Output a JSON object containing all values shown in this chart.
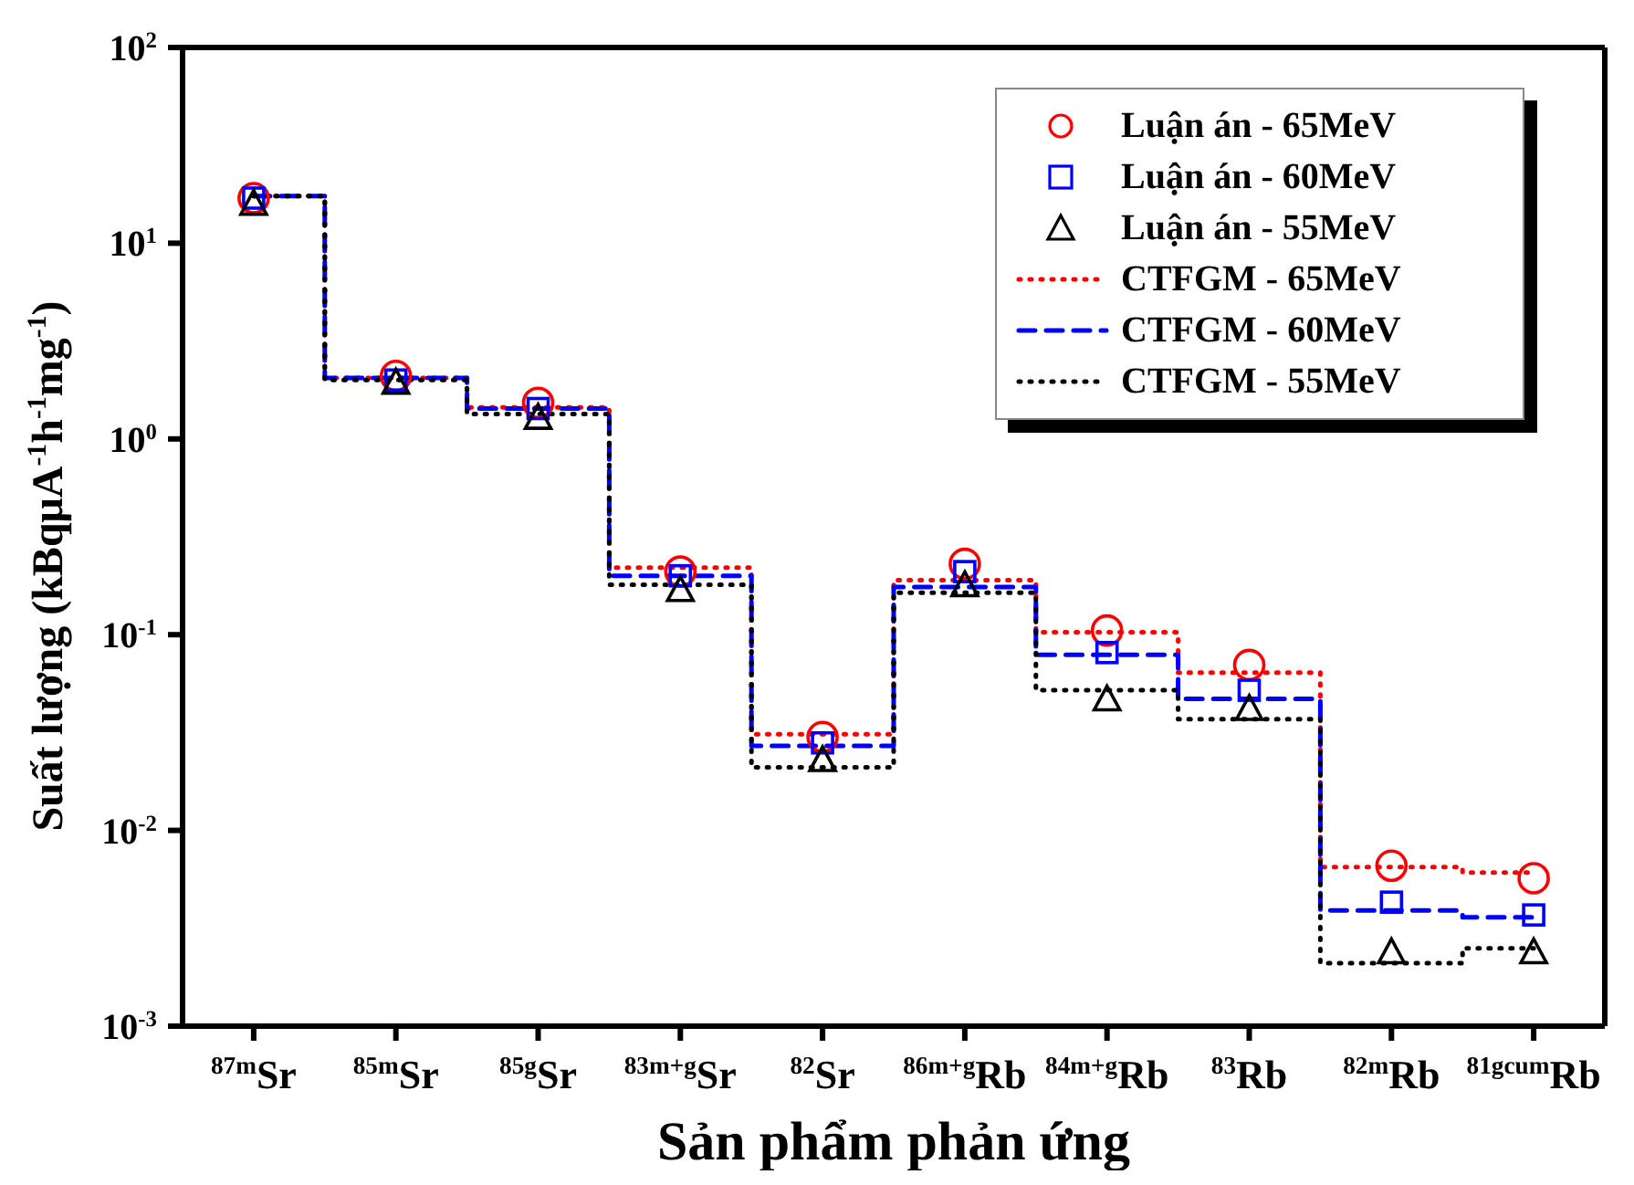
{
  "chart_data": {
    "type": "scatter",
    "xlabel": "Sản phẩm phản ứng",
    "ylabel": "Suất lượng (kBqμA$^{-1}$h$^{-1}$mg$^{-1}$)",
    "categories": [
      "$^{87m}$Sr",
      "$^{85m}$Sr",
      "$^{85g}$Sr",
      "$^{83m+g}$Sr",
      "$^{82}$Sr",
      "$^{86m+g}$Rb",
      "$^{84m+g}$Rb",
      "$^{83}$Rb",
      "$^{82m}$Rb",
      "$^{81gcum}$Rb"
    ],
    "log": "y",
    "ylim": [
      0.001,
      100
    ],
    "yticks": [
      {
        "value": 0.001,
        "label": "10$^{-3}$"
      },
      {
        "value": 0.01,
        "label": "10$^{-2}$"
      },
      {
        "value": 0.1,
        "label": "10$^{-1}$"
      },
      {
        "value": 1,
        "label": "10$^{0}$"
      },
      {
        "value": 10,
        "label": "10$^{1}$"
      },
      {
        "value": 100,
        "label": "10$^{2}$"
      }
    ],
    "legend": "top right",
    "series": [
      {
        "name": "Luận án - 65MeV",
        "marker": "circle",
        "color": "#ff0000",
        "values": [
          17,
          2.1,
          1.53,
          0.21,
          0.03,
          0.23,
          0.105,
          0.07,
          0.0066,
          0.0057
        ]
      },
      {
        "name": "Luận án - 60MeV",
        "marker": "square",
        "color": "#0000ff",
        "values": [
          17,
          2.0,
          1.43,
          0.2,
          0.028,
          0.21,
          0.081,
          0.052,
          0.0043,
          0.0037
        ]
      },
      {
        "name": "Luận án - 55MeV",
        "marker": "triangle",
        "color": "#000000",
        "values": [
          16,
          1.95,
          1.29,
          0.17,
          0.023,
          0.18,
          0.047,
          0.042,
          0.0024,
          0.0024
        ]
      },
      {
        "name": "CTFGM - 65MeV",
        "type": "step",
        "line_style": "dotted",
        "color": "#ff0000",
        "values": [
          17.4,
          2.05,
          1.45,
          0.22,
          0.031,
          0.19,
          0.103,
          0.064,
          0.0065,
          0.0061
        ]
      },
      {
        "name": "CTFGM - 60MeV",
        "type": "step",
        "line_style": "dashed",
        "color": "#0000ff",
        "values": [
          17.4,
          2.05,
          1.43,
          0.2,
          0.027,
          0.175,
          0.079,
          0.047,
          0.0039,
          0.0036
        ]
      },
      {
        "name": "CTFGM - 55MeV",
        "type": "step",
        "line_style": "dotted",
        "color": "#000000",
        "values": [
          17.4,
          2.0,
          1.34,
          0.18,
          0.021,
          0.164,
          0.052,
          0.037,
          0.0021,
          0.0025
        ]
      }
    ]
  }
}
